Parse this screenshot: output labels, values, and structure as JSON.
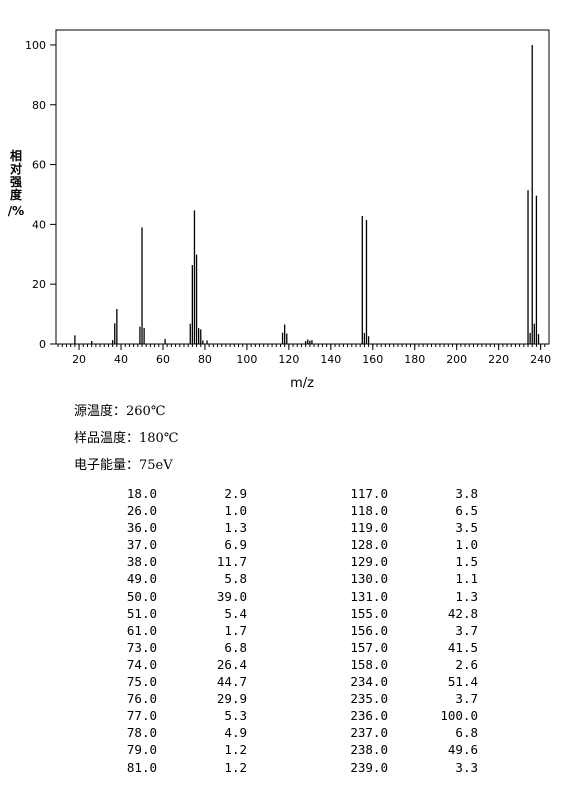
{
  "chart_data": {
    "type": "bar",
    "xlabel": "m/z",
    "ylabel": "相对强度/%",
    "xlim": [
      9,
      244
    ],
    "ylim": [
      0,
      105
    ],
    "xticks": [
      20,
      40,
      60,
      80,
      100,
      120,
      140,
      160,
      180,
      200,
      220,
      240
    ],
    "yticks": [
      0,
      20,
      40,
      60,
      80,
      100
    ],
    "grid": false,
    "peaks": [
      {
        "x": 18.0,
        "y": 2.9
      },
      {
        "x": 26.0,
        "y": 1.0
      },
      {
        "x": 36.0,
        "y": 1.3
      },
      {
        "x": 37.0,
        "y": 6.9
      },
      {
        "x": 38.0,
        "y": 11.7
      },
      {
        "x": 49.0,
        "y": 5.8
      },
      {
        "x": 50.0,
        "y": 39.0
      },
      {
        "x": 51.0,
        "y": 5.4
      },
      {
        "x": 61.0,
        "y": 1.7
      },
      {
        "x": 73.0,
        "y": 6.8
      },
      {
        "x": 74.0,
        "y": 26.4
      },
      {
        "x": 75.0,
        "y": 44.7
      },
      {
        "x": 76.0,
        "y": 29.9
      },
      {
        "x": 77.0,
        "y": 5.3
      },
      {
        "x": 78.0,
        "y": 4.9
      },
      {
        "x": 79.0,
        "y": 1.2
      },
      {
        "x": 81.0,
        "y": 1.2
      },
      {
        "x": 117.0,
        "y": 3.8
      },
      {
        "x": 118.0,
        "y": 6.5
      },
      {
        "x": 119.0,
        "y": 3.5
      },
      {
        "x": 128.0,
        "y": 1.0
      },
      {
        "x": 129.0,
        "y": 1.5
      },
      {
        "x": 130.0,
        "y": 1.1
      },
      {
        "x": 131.0,
        "y": 1.3
      },
      {
        "x": 155.0,
        "y": 42.8
      },
      {
        "x": 156.0,
        "y": 3.7
      },
      {
        "x": 157.0,
        "y": 41.5
      },
      {
        "x": 158.0,
        "y": 2.6
      },
      {
        "x": 234.0,
        "y": 51.4
      },
      {
        "x": 235.0,
        "y": 3.7
      },
      {
        "x": 236.0,
        "y": 100.0
      },
      {
        "x": 237.0,
        "y": 6.8
      },
      {
        "x": 238.0,
        "y": 49.6
      },
      {
        "x": 239.0,
        "y": 3.3
      }
    ]
  },
  "conditions": [
    {
      "label": "源温度：",
      "value": "260℃"
    },
    {
      "label": "样品温度：",
      "value": "180℃"
    },
    {
      "label": "电子能量：",
      "value": "75eV"
    }
  ],
  "table": {
    "rows": [
      [
        "18.0",
        "2.9",
        "117.0",
        "3.8"
      ],
      [
        "26.0",
        "1.0",
        "118.0",
        "6.5"
      ],
      [
        "36.0",
        "1.3",
        "119.0",
        "3.5"
      ],
      [
        "37.0",
        "6.9",
        "128.0",
        "1.0"
      ],
      [
        "38.0",
        "11.7",
        "129.0",
        "1.5"
      ],
      [
        "49.0",
        "5.8",
        "130.0",
        "1.1"
      ],
      [
        "50.0",
        "39.0",
        "131.0",
        "1.3"
      ],
      [
        "51.0",
        "5.4",
        "155.0",
        "42.8"
      ],
      [
        "61.0",
        "1.7",
        "156.0",
        "3.7"
      ],
      [
        "73.0",
        "6.8",
        "157.0",
        "41.5"
      ],
      [
        "74.0",
        "26.4",
        "158.0",
        "2.6"
      ],
      [
        "75.0",
        "44.7",
        "234.0",
        "51.4"
      ],
      [
        "76.0",
        "29.9",
        "235.0",
        "3.7"
      ],
      [
        "77.0",
        "5.3",
        "236.0",
        "100.0"
      ],
      [
        "78.0",
        "4.9",
        "237.0",
        "6.8"
      ],
      [
        "79.0",
        "1.2",
        "238.0",
        "49.6"
      ],
      [
        "81.0",
        "1.2",
        "239.0",
        "3.3"
      ]
    ]
  }
}
